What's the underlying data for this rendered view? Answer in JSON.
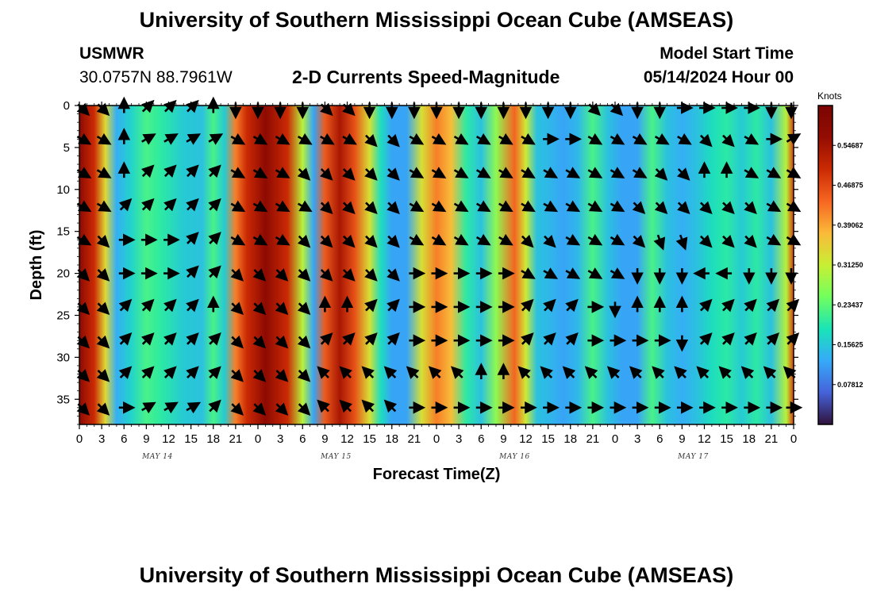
{
  "header": {
    "title": "University of Southern Mississippi Ocean Cube (AMSEAS)",
    "station_id": "USMWR",
    "coordinates": "30.0757N  88.7961W",
    "plot_title": "2-D Currents Speed-Magnitude",
    "model_start_label": "Model Start Time",
    "model_start_value": "05/14/2024 Hour 00"
  },
  "footer": {
    "title": "University of Southern Mississippi Ocean Cube (AMSEAS)"
  },
  "chart_data": {
    "type": "heatmap",
    "title": "2-D Currents Speed-Magnitude",
    "xlabel": "Forecast Time(Z)",
    "ylabel": "Depth (ft)",
    "x_ticks": [
      "0",
      "3",
      "6",
      "9",
      "12",
      "15",
      "18",
      "21",
      "0",
      "3",
      "6",
      "9",
      "12",
      "15",
      "18",
      "21",
      "0",
      "3",
      "6",
      "9",
      "12",
      "15",
      "18",
      "21",
      "0",
      "3",
      "6",
      "9",
      "12",
      "15",
      "18",
      "21",
      "0"
    ],
    "x_range_hours": [
      0,
      96
    ],
    "date_labels": [
      {
        "text": "MAY 14",
        "hour": 10.5
      },
      {
        "text": "MAY 15",
        "hour": 34.5
      },
      {
        "text": "MAY 16",
        "hour": 58.5
      },
      {
        "text": "MAY 17",
        "hour": 82.5
      }
    ],
    "y_ticks": [
      "0",
      "5",
      "10",
      "15",
      "20",
      "25",
      "30",
      "35"
    ],
    "y_range_ft": [
      0,
      38
    ],
    "colorbar": {
      "title": "Knots",
      "range": [
        0,
        0.625
      ],
      "tick_labels": [
        "0.07812",
        "0.15625",
        "0.23437",
        "0.31250",
        "0.39062",
        "0.46875",
        "0.54687"
      ],
      "tick_values": [
        0.07812,
        0.15625,
        0.23437,
        0.3125,
        0.39062,
        0.46875,
        0.54687
      ]
    },
    "colors": {
      "low": "#30123b",
      "mid_low": "#2aa0ef",
      "mid": "#a4fc3c",
      "mid_high": "#fb8022",
      "high": "#7a0403"
    },
    "speed_profile_by_hour": [
      {
        "hour": 0,
        "speed": 0.58
      },
      {
        "hour": 2,
        "speed": 0.5
      },
      {
        "hour": 3.5,
        "speed": 0.34
      },
      {
        "hour": 5,
        "speed": 0.13
      },
      {
        "hour": 7,
        "speed": 0.17
      },
      {
        "hour": 9,
        "speed": 0.22
      },
      {
        "hour": 11,
        "speed": 0.2
      },
      {
        "hour": 14,
        "speed": 0.16
      },
      {
        "hour": 16.5,
        "speed": 0.15
      },
      {
        "hour": 18,
        "speed": 0.22
      },
      {
        "hour": 19.5,
        "speed": 0.16
      },
      {
        "hour": 21,
        "speed": 0.42
      },
      {
        "hour": 22.5,
        "speed": 0.5
      },
      {
        "hour": 25,
        "speed": 0.58
      },
      {
        "hour": 28,
        "speed": 0.5
      },
      {
        "hour": 30,
        "speed": 0.3
      },
      {
        "hour": 31.5,
        "speed": 0.12
      },
      {
        "hour": 33,
        "speed": 0.45
      },
      {
        "hour": 35,
        "speed": 0.54
      },
      {
        "hour": 37,
        "speed": 0.46
      },
      {
        "hour": 39,
        "speed": 0.33
      },
      {
        "hour": 40.5,
        "speed": 0.18
      },
      {
        "hour": 42,
        "speed": 0.12
      },
      {
        "hour": 44,
        "speed": 0.12
      },
      {
        "hour": 46,
        "speed": 0.33
      },
      {
        "hour": 48,
        "speed": 0.42
      },
      {
        "hour": 50,
        "speed": 0.37
      },
      {
        "hour": 52,
        "speed": 0.2
      },
      {
        "hour": 54,
        "speed": 0.15
      },
      {
        "hour": 56,
        "speed": 0.27
      },
      {
        "hour": 58.5,
        "speed": 0.44
      },
      {
        "hour": 60,
        "speed": 0.32
      },
      {
        "hour": 61.5,
        "speed": 0.15
      },
      {
        "hour": 63,
        "speed": 0.14
      },
      {
        "hour": 65,
        "speed": 0.12
      },
      {
        "hour": 67,
        "speed": 0.14
      },
      {
        "hour": 69,
        "speed": 0.22
      },
      {
        "hour": 71,
        "speed": 0.15
      },
      {
        "hour": 73,
        "speed": 0.12
      },
      {
        "hour": 75,
        "speed": 0.12
      },
      {
        "hour": 77,
        "speed": 0.22
      },
      {
        "hour": 79,
        "speed": 0.15
      },
      {
        "hour": 81,
        "speed": 0.13
      },
      {
        "hour": 83,
        "speed": 0.15
      },
      {
        "hour": 85,
        "speed": 0.18
      },
      {
        "hour": 87,
        "speed": 0.2
      },
      {
        "hour": 89,
        "speed": 0.16
      },
      {
        "hour": 91,
        "speed": 0.2
      },
      {
        "hour": 93,
        "speed": 0.15
      },
      {
        "hour": 95,
        "speed": 0.3
      },
      {
        "hour": 96,
        "speed": 0.48
      }
    ],
    "arrow_depths_ft": [
      0,
      4,
      8,
      12,
      16,
      20,
      24,
      28,
      32,
      36
    ],
    "arrow_hours": [
      0,
      3,
      6,
      9,
      12,
      15,
      18,
      21,
      24,
      27,
      30,
      33,
      36,
      39,
      42,
      45,
      48,
      51,
      54,
      57,
      60,
      63,
      66,
      69,
      72,
      75,
      78,
      81,
      84,
      87,
      90,
      93,
      96
    ],
    "arrow_directions_deg": [
      [
        135,
        135,
        0,
        45,
        45,
        45,
        0,
        180,
        180,
        180,
        180,
        135,
        135,
        180,
        180,
        180,
        180,
        180,
        180,
        180,
        180,
        180,
        180,
        135,
        135,
        180,
        180,
        90,
        90,
        90,
        90,
        180,
        180
      ],
      [
        120,
        120,
        0,
        60,
        60,
        60,
        60,
        120,
        120,
        120,
        120,
        120,
        120,
        135,
        135,
        120,
        120,
        120,
        120,
        120,
        120,
        90,
        90,
        120,
        120,
        120,
        120,
        120,
        135,
        135,
        120,
        90,
        60
      ],
      [
        120,
        120,
        0,
        45,
        45,
        45,
        45,
        120,
        120,
        120,
        135,
        135,
        135,
        135,
        135,
        120,
        120,
        120,
        120,
        120,
        120,
        120,
        120,
        120,
        120,
        120,
        135,
        135,
        0,
        0,
        120,
        120,
        120
      ],
      [
        120,
        120,
        45,
        45,
        45,
        45,
        45,
        120,
        120,
        120,
        120,
        135,
        135,
        135,
        135,
        120,
        120,
        120,
        120,
        120,
        120,
        120,
        120,
        120,
        120,
        135,
        135,
        135,
        135,
        135,
        135,
        120,
        120
      ],
      [
        120,
        135,
        90,
        90,
        90,
        45,
        45,
        120,
        120,
        120,
        135,
        135,
        135,
        135,
        135,
        120,
        120,
        120,
        120,
        120,
        135,
        135,
        120,
        120,
        120,
        135,
        160,
        160,
        135,
        135,
        135,
        120,
        120
      ],
      [
        135,
        135,
        90,
        90,
        90,
        45,
        45,
        135,
        135,
        135,
        135,
        135,
        135,
        135,
        135,
        90,
        90,
        90,
        90,
        90,
        120,
        120,
        120,
        120,
        120,
        180,
        180,
        180,
        270,
        270,
        180,
        180,
        180
      ],
      [
        135,
        135,
        45,
        45,
        45,
        45,
        0,
        135,
        135,
        135,
        135,
        0,
        0,
        45,
        45,
        90,
        90,
        90,
        90,
        90,
        45,
        45,
        45,
        90,
        180,
        0,
        0,
        0,
        45,
        45,
        45,
        45,
        45
      ],
      [
        135,
        135,
        45,
        45,
        45,
        45,
        45,
        135,
        135,
        135,
        135,
        45,
        45,
        45,
        45,
        90,
        90,
        90,
        90,
        90,
        45,
        45,
        45,
        90,
        90,
        90,
        90,
        180,
        45,
        45,
        45,
        45,
        45
      ],
      [
        135,
        135,
        45,
        45,
        45,
        45,
        45,
        135,
        135,
        135,
        135,
        315,
        315,
        315,
        315,
        315,
        315,
        315,
        0,
        0,
        315,
        315,
        315,
        315,
        315,
        315,
        315,
        315,
        315,
        315,
        315,
        315,
        315
      ],
      [
        135,
        135,
        90,
        60,
        60,
        60,
        45,
        135,
        135,
        135,
        135,
        315,
        315,
        315,
        315,
        90,
        90,
        90,
        90,
        90,
        90,
        90,
        90,
        90,
        90,
        90,
        90,
        90,
        90,
        90,
        90,
        90,
        90
      ]
    ]
  }
}
